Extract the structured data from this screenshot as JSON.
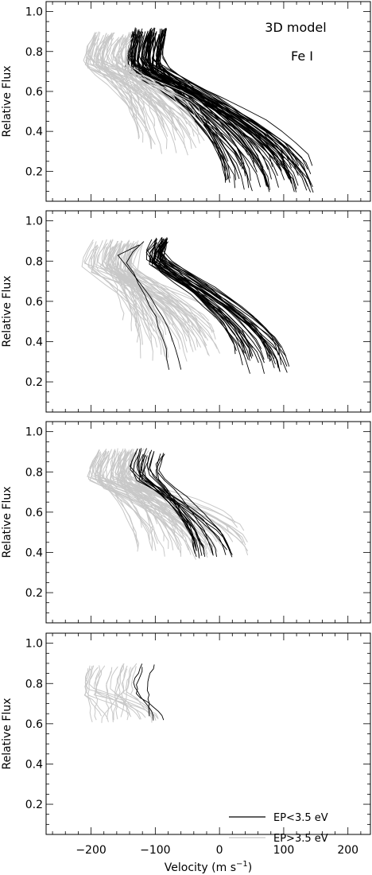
{
  "figure": {
    "xlabel": "Velocity (m s",
    "xlabel_sup": "−1",
    "xlabel_close": ")",
    "ylabel": "Relative Flux",
    "annotation_line1": "3D model",
    "annotation_line2": "Fe I",
    "legend": [
      {
        "label": "EP<3.5 eV",
        "color": "#000000"
      },
      {
        "label": "EP>3.5 eV",
        "color": "#c8c8c8"
      }
    ],
    "colors": {
      "low_ep": "#000000",
      "high_ep": "#c8c8c8",
      "axis": "#000000"
    }
  },
  "chart_data": [
    {
      "type": "line",
      "panel": 1,
      "xlim": [
        -270,
        235
      ],
      "ylim": [
        0.05,
        1.05
      ],
      "xticks": [
        -200,
        -100,
        0,
        100,
        200
      ],
      "yticks": [
        0.2,
        0.4,
        0.6,
        0.8,
        1.0
      ],
      "ytick_labels": [
        "0.2",
        "0.4",
        "0.6",
        "0.8",
        "1.0"
      ],
      "ylabel": "Relative Flux",
      "annotation": [
        "3D model",
        "Fe I"
      ],
      "families": [
        {
          "group": "EP<3.5 eV",
          "count": 70,
          "top_y": 0.92,
          "top_x": [
            -135,
            -80
          ],
          "nose_y": 0.72,
          "nose_dx": [
            -15,
            -5
          ],
          "bot_y": [
            0.09,
            0.24
          ],
          "bot_x": [
            5,
            150
          ]
        },
        {
          "group": "EP>3.5 eV",
          "count": 50,
          "top_y": 0.9,
          "top_x": [
            -195,
            -135
          ],
          "nose_y": 0.74,
          "nose_dx": [
            -20,
            -5
          ],
          "bot_y": [
            0.28,
            0.55
          ],
          "bot_x": [
            -140,
            -20
          ]
        }
      ]
    },
    {
      "type": "line",
      "panel": 2,
      "xlim": [
        -270,
        235
      ],
      "ylim": [
        0.05,
        1.05
      ],
      "xticks": [
        -200,
        -100,
        0,
        100,
        200
      ],
      "yticks": [
        0.2,
        0.4,
        0.6,
        0.8,
        1.0
      ],
      "ytick_labels": [
        "0.2",
        "0.4",
        "0.6",
        "0.8",
        "1.0"
      ],
      "ylabel": "Relative Flux",
      "families": [
        {
          "group": "EP>3.5 eV",
          "count": 60,
          "top_y": 0.91,
          "top_x": [
            -200,
            -120
          ],
          "nose_y": 0.76,
          "nose_dx": [
            -20,
            -5
          ],
          "bot_y": [
            0.3,
            0.52
          ],
          "bot_x": [
            -150,
            0
          ]
        },
        {
          "group": "EP<3.5 eV",
          "count": 35,
          "top_y": 0.92,
          "top_x": [
            -105,
            -80
          ],
          "nose_y": 0.8,
          "nose_dx": [
            -15,
            -5
          ],
          "bot_y": [
            0.24,
            0.34
          ],
          "bot_x": [
            20,
            110
          ]
        },
        {
          "group": "EP<3.5 eV",
          "count": 2,
          "top_y": 0.91,
          "top_x": [
            -140,
            -115
          ],
          "nose_y": 0.8,
          "nose_dx": [
            -40,
            -25
          ],
          "bot_y": [
            0.25,
            0.27
          ],
          "bot_x": [
            -100,
            -60
          ]
        }
      ]
    },
    {
      "type": "line",
      "panel": 3,
      "xlim": [
        -270,
        235
      ],
      "ylim": [
        0.05,
        1.05
      ],
      "xticks": [
        -200,
        -100,
        0,
        100,
        200
      ],
      "yticks": [
        0.2,
        0.4,
        0.6,
        0.8,
        1.0
      ],
      "ytick_labels": [
        "0.2",
        "0.4",
        "0.6",
        "0.8",
        "1.0"
      ],
      "ylabel": "Relative Flux",
      "families": [
        {
          "group": "EP>3.5 eV",
          "count": 60,
          "top_y": 0.92,
          "top_x": [
            -190,
            -110
          ],
          "nose_y": 0.76,
          "nose_dx": [
            -20,
            -5
          ],
          "bot_y": [
            0.36,
            0.55
          ],
          "bot_x": [
            -135,
            45
          ]
        },
        {
          "group": "EP<3.5 eV",
          "count": 18,
          "top_y": 0.92,
          "top_x": [
            -130,
            -85
          ],
          "nose_y": 0.78,
          "nose_dx": [
            -15,
            -5
          ],
          "bot_y": [
            0.37,
            0.42
          ],
          "bot_x": [
            -50,
            20
          ]
        }
      ]
    },
    {
      "type": "line",
      "panel": 4,
      "xlim": [
        -270,
        235
      ],
      "ylim": [
        0.05,
        1.05
      ],
      "xticks": [
        -200,
        -100,
        0,
        100,
        200
      ],
      "xtick_labels": [
        "−200",
        "−100",
        "0",
        "100",
        "200"
      ],
      "yticks": [
        0.2,
        0.4,
        0.6,
        0.8,
        1.0
      ],
      "ytick_labels": [
        "0.2",
        "0.4",
        "0.6",
        "0.8",
        "1.0"
      ],
      "ylabel": "Relative Flux",
      "xlabel": "Velocity (m s⁻¹)",
      "legend": [
        "EP<3.5 eV",
        "EP>3.5 eV"
      ],
      "legend_position": "bottom-right",
      "families": [
        {
          "group": "EP>3.5 eV",
          "count": 22,
          "top_y": 0.9,
          "top_x": [
            -205,
            -130
          ],
          "nose_y": 0.76,
          "nose_dx": [
            -15,
            -5
          ],
          "bot_y": [
            0.6,
            0.64
          ],
          "bot_x": [
            -215,
            -90
          ]
        },
        {
          "group": "EP<3.5 eV",
          "count": 3,
          "top_y": 0.9,
          "top_x": [
            -125,
            -95
          ],
          "nose_y": 0.75,
          "nose_dx": [
            -15,
            -10
          ],
          "bot_y": [
            0.61,
            0.64
          ],
          "bot_x": [
            -110,
            -85
          ]
        }
      ]
    }
  ]
}
